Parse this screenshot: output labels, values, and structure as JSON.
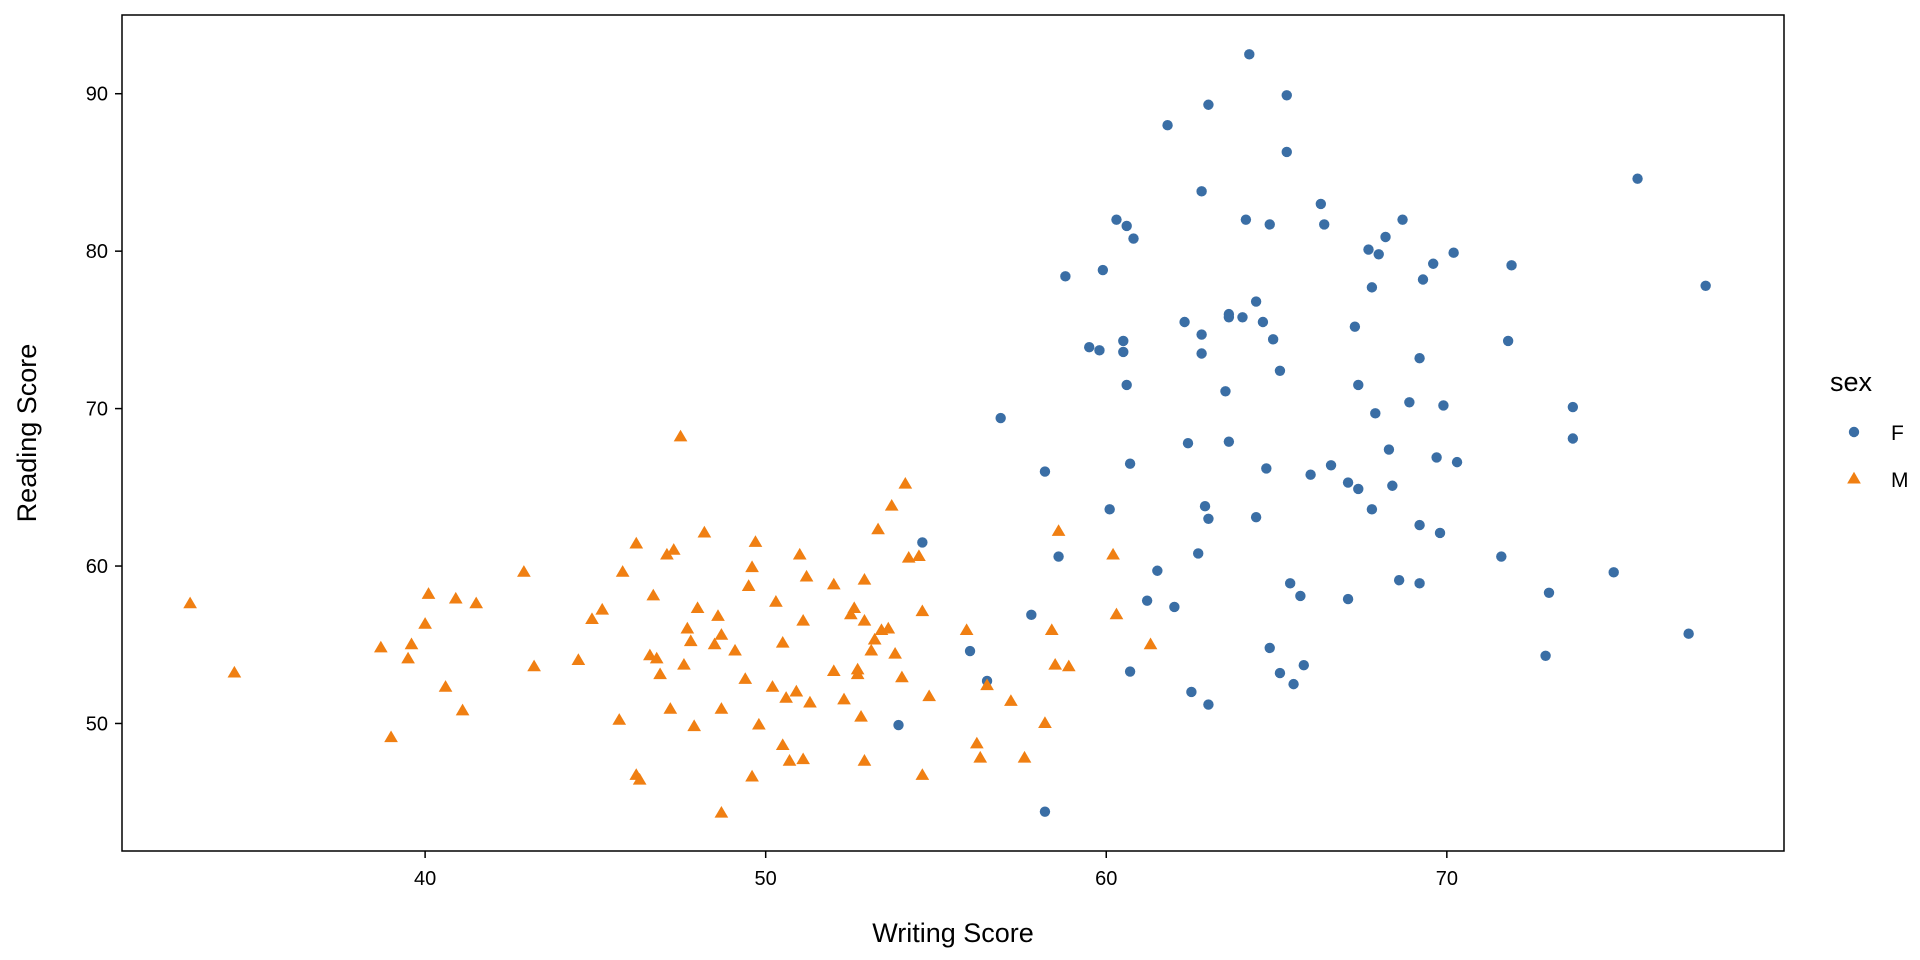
{
  "chart_data": {
    "type": "scatter",
    "title": "",
    "xlabel": "Writing Score",
    "ylabel": "Reading Score",
    "xlim": [
      31.1,
      79.9
    ],
    "ylim": [
      41.9,
      95.0
    ],
    "x_ticks": [
      40,
      50,
      60,
      70
    ],
    "y_ticks": [
      50,
      60,
      70,
      80,
      90
    ],
    "grid": false,
    "legend": {
      "title": "sex",
      "position": "right"
    },
    "series": [
      {
        "name": "F",
        "marker": "circle",
        "color": "#3A6EA5",
        "points": [
          [
            54.6,
            61.5
          ],
          [
            53.9,
            49.9
          ],
          [
            56.0,
            54.6
          ],
          [
            56.5,
            52.7
          ],
          [
            56.9,
            69.4
          ],
          [
            57.8,
            56.9
          ],
          [
            58.2,
            66.0
          ],
          [
            58.2,
            44.4
          ],
          [
            58.6,
            60.6
          ],
          [
            58.8,
            78.4
          ],
          [
            59.5,
            73.9
          ],
          [
            59.8,
            73.7
          ],
          [
            59.9,
            78.8
          ],
          [
            60.1,
            63.6
          ],
          [
            60.3,
            82.0
          ],
          [
            60.5,
            74.3
          ],
          [
            60.5,
            73.6
          ],
          [
            60.6,
            81.6
          ],
          [
            60.6,
            71.5
          ],
          [
            60.7,
            66.5
          ],
          [
            60.7,
            53.3
          ],
          [
            60.8,
            80.8
          ],
          [
            61.2,
            57.8
          ],
          [
            61.5,
            59.7
          ],
          [
            61.8,
            88.0
          ],
          [
            62.0,
            57.4
          ],
          [
            62.3,
            75.5
          ],
          [
            62.4,
            67.8
          ],
          [
            62.5,
            52.0
          ],
          [
            62.7,
            60.8
          ],
          [
            62.8,
            83.8
          ],
          [
            62.8,
            74.7
          ],
          [
            62.8,
            73.5
          ],
          [
            62.9,
            63.8
          ],
          [
            63.0,
            63.0
          ],
          [
            63.0,
            51.2
          ],
          [
            63.0,
            89.3
          ],
          [
            63.5,
            71.1
          ],
          [
            63.6,
            67.9
          ],
          [
            63.6,
            76.0
          ],
          [
            63.6,
            75.8
          ],
          [
            64.0,
            75.8
          ],
          [
            64.1,
            82.0
          ],
          [
            64.2,
            92.5
          ],
          [
            64.4,
            76.8
          ],
          [
            64.4,
            63.1
          ],
          [
            64.6,
            75.5
          ],
          [
            64.7,
            66.2
          ],
          [
            64.8,
            54.8
          ],
          [
            64.8,
            81.7
          ],
          [
            64.9,
            74.4
          ],
          [
            65.1,
            72.4
          ],
          [
            65.1,
            53.2
          ],
          [
            65.3,
            89.9
          ],
          [
            65.3,
            86.3
          ],
          [
            65.4,
            58.9
          ],
          [
            65.5,
            52.5
          ],
          [
            65.7,
            58.1
          ],
          [
            65.8,
            53.7
          ],
          [
            66.0,
            65.8
          ],
          [
            66.3,
            83.0
          ],
          [
            66.4,
            81.7
          ],
          [
            66.6,
            66.4
          ],
          [
            67.1,
            65.3
          ],
          [
            67.1,
            57.9
          ],
          [
            67.3,
            75.2
          ],
          [
            67.4,
            71.5
          ],
          [
            67.4,
            64.9
          ],
          [
            67.7,
            80.1
          ],
          [
            67.8,
            77.7
          ],
          [
            67.8,
            63.6
          ],
          [
            67.9,
            69.7
          ],
          [
            68.0,
            79.8
          ],
          [
            68.2,
            80.9
          ],
          [
            68.3,
            67.4
          ],
          [
            68.4,
            65.1
          ],
          [
            68.6,
            59.1
          ],
          [
            68.7,
            82.0
          ],
          [
            68.9,
            70.4
          ],
          [
            69.2,
            62.6
          ],
          [
            69.2,
            58.9
          ],
          [
            69.2,
            73.2
          ],
          [
            69.3,
            78.2
          ],
          [
            69.6,
            79.2
          ],
          [
            69.7,
            66.9
          ],
          [
            69.8,
            62.1
          ],
          [
            69.9,
            70.2
          ],
          [
            70.2,
            79.9
          ],
          [
            70.3,
            66.6
          ],
          [
            71.6,
            60.6
          ],
          [
            71.8,
            74.3
          ],
          [
            71.9,
            79.1
          ],
          [
            72.9,
            54.3
          ],
          [
            73.0,
            58.3
          ],
          [
            73.7,
            70.1
          ],
          [
            73.7,
            68.1
          ],
          [
            74.9,
            59.6
          ],
          [
            75.6,
            84.6
          ],
          [
            77.1,
            55.7
          ],
          [
            77.6,
            77.8
          ]
        ]
      },
      {
        "name": "M",
        "marker": "triangle",
        "color": "#F07F12",
        "points": [
          [
            33.1,
            57.6
          ],
          [
            34.4,
            53.2
          ],
          [
            38.7,
            54.8
          ],
          [
            39.0,
            49.1
          ],
          [
            39.5,
            54.1
          ],
          [
            39.6,
            55.0
          ],
          [
            40.0,
            56.3
          ],
          [
            40.1,
            58.2
          ],
          [
            40.6,
            52.3
          ],
          [
            40.9,
            57.9
          ],
          [
            41.1,
            50.8
          ],
          [
            41.5,
            57.6
          ],
          [
            42.9,
            59.6
          ],
          [
            43.2,
            53.6
          ],
          [
            44.5,
            54.0
          ],
          [
            44.9,
            56.6
          ],
          [
            45.2,
            57.2
          ],
          [
            45.7,
            50.2
          ],
          [
            45.8,
            59.6
          ],
          [
            46.2,
            61.4
          ],
          [
            46.2,
            46.7
          ],
          [
            46.3,
            46.4
          ],
          [
            46.6,
            54.3
          ],
          [
            46.7,
            58.1
          ],
          [
            46.8,
            54.1
          ],
          [
            46.9,
            53.1
          ],
          [
            47.1,
            60.7
          ],
          [
            47.2,
            50.9
          ],
          [
            47.3,
            61.0
          ],
          [
            47.5,
            68.2
          ],
          [
            47.6,
            53.7
          ],
          [
            47.7,
            56.0
          ],
          [
            47.8,
            55.2
          ],
          [
            47.9,
            49.8
          ],
          [
            48.0,
            57.3
          ],
          [
            48.2,
            62.1
          ],
          [
            48.5,
            55.0
          ],
          [
            48.6,
            56.8
          ],
          [
            48.7,
            50.9
          ],
          [
            48.7,
            55.6
          ],
          [
            48.7,
            44.3
          ],
          [
            49.1,
            54.6
          ],
          [
            49.4,
            52.8
          ],
          [
            49.5,
            58.7
          ],
          [
            49.6,
            59.9
          ],
          [
            49.6,
            46.6
          ],
          [
            49.7,
            61.5
          ],
          [
            49.8,
            49.9
          ],
          [
            50.2,
            52.3
          ],
          [
            50.3,
            57.7
          ],
          [
            50.5,
            55.1
          ],
          [
            50.5,
            48.6
          ],
          [
            50.6,
            51.6
          ],
          [
            50.7,
            47.6
          ],
          [
            50.9,
            52.0
          ],
          [
            51.0,
            60.7
          ],
          [
            51.1,
            56.5
          ],
          [
            51.1,
            47.7
          ],
          [
            51.2,
            59.3
          ],
          [
            51.3,
            51.3
          ],
          [
            52.0,
            58.8
          ],
          [
            52.0,
            53.3
          ],
          [
            52.3,
            51.5
          ],
          [
            52.5,
            56.9
          ],
          [
            52.6,
            57.3
          ],
          [
            52.7,
            53.4
          ],
          [
            52.7,
            53.1
          ],
          [
            52.8,
            50.4
          ],
          [
            52.9,
            59.1
          ],
          [
            52.9,
            56.5
          ],
          [
            52.9,
            47.6
          ],
          [
            53.1,
            54.6
          ],
          [
            53.2,
            55.3
          ],
          [
            53.3,
            62.3
          ],
          [
            53.4,
            55.9
          ],
          [
            53.6,
            56.0
          ],
          [
            53.7,
            63.8
          ],
          [
            53.8,
            54.4
          ],
          [
            54.0,
            52.9
          ],
          [
            54.1,
            65.2
          ],
          [
            54.2,
            60.5
          ],
          [
            54.5,
            60.6
          ],
          [
            54.6,
            57.1
          ],
          [
            54.6,
            46.7
          ],
          [
            54.8,
            51.7
          ],
          [
            55.9,
            55.9
          ],
          [
            56.2,
            48.7
          ],
          [
            56.3,
            47.8
          ],
          [
            56.5,
            52.4
          ],
          [
            57.2,
            51.4
          ],
          [
            57.6,
            47.8
          ],
          [
            58.2,
            50.0
          ],
          [
            58.4,
            55.9
          ],
          [
            58.5,
            53.7
          ],
          [
            58.6,
            62.2
          ],
          [
            58.9,
            53.6
          ],
          [
            60.2,
            60.7
          ],
          [
            60.3,
            56.9
          ],
          [
            61.3,
            55.0
          ]
        ]
      }
    ]
  }
}
